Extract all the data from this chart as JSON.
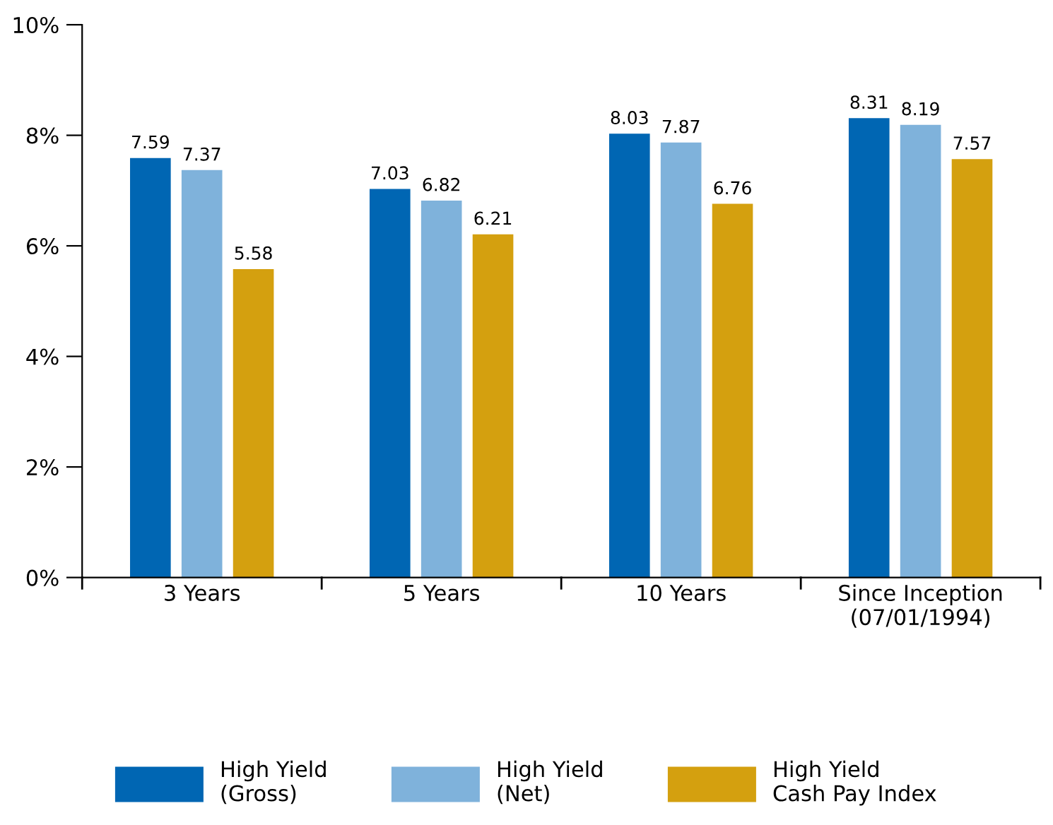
{
  "chart_data": {
    "type": "bar",
    "categories": [
      "3 Years",
      "5 Years",
      "10 Years",
      "Since Inception\n(07/01/1994)"
    ],
    "series": [
      {
        "name": "High Yield\n(Gross)",
        "color": "#0066b3",
        "values": [
          7.59,
          7.03,
          8.03,
          8.31
        ]
      },
      {
        "name": "High Yield\n(Net)",
        "color": "#7fb2db",
        "values": [
          7.37,
          6.82,
          7.87,
          8.19
        ]
      },
      {
        "name": "High Yield\nCash Pay Index",
        "color": "#d4a00f",
        "values": [
          5.58,
          6.21,
          6.76,
          7.57
        ]
      }
    ],
    "ylim": [
      0,
      10
    ],
    "yticks": [
      {
        "value": 0,
        "label": "0%"
      },
      {
        "value": 2,
        "label": "2%"
      },
      {
        "value": 4,
        "label": "4%"
      },
      {
        "value": 6,
        "label": "6%"
      },
      {
        "value": 8,
        "label": "8%"
      },
      {
        "value": 10,
        "label": "10%"
      }
    ],
    "data_labels": true,
    "grid": false,
    "legend": "bottom"
  }
}
